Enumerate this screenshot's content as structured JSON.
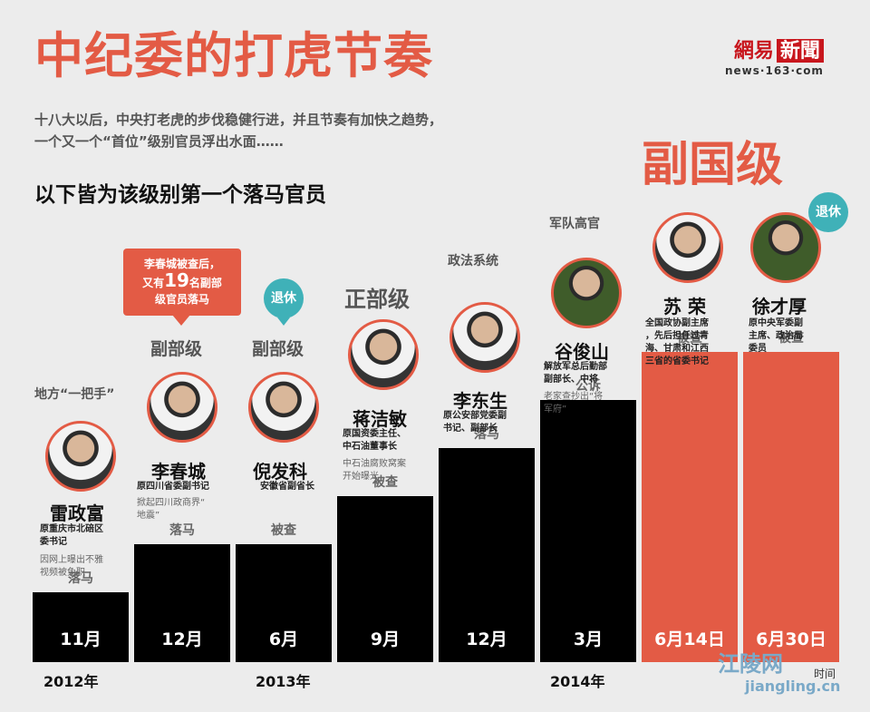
{
  "header": {
    "title": "中纪委的打虎节奏",
    "subtitle_lines": [
      "十八大以后，中央打老虎的步伐稳健行进，并且节奏有加快之趋势，",
      "一个又一个“首位”级别官员浮出水面……"
    ],
    "heading": "以下皆为该级别第一个落马官员",
    "top_rank": "副国级"
  },
  "logo": {
    "main": "網易",
    "box": "新聞",
    "sub": "news·163·com"
  },
  "callout": {
    "line1": "李春城被查后，",
    "line2_pre": "又有",
    "line2_num": "19",
    "line2_post": "名副部",
    "line3": "级官员落马"
  },
  "levels": {
    "lei": "地方“一把手”",
    "li": "副部级",
    "ni": "副部级",
    "jiang": "正部级",
    "lidong": "政法系统",
    "gu": "军队高官"
  },
  "badges": {
    "ni": "退休",
    "xu": "退休"
  },
  "people": [
    {
      "name": "雷政富",
      "desc": [
        "原重庆市北碚区",
        "委书记"
      ],
      "note": [
        "因网上曝出不雅",
        "视频被免职"
      ]
    },
    {
      "name": "李春城",
      "desc": [
        "原四川省委副书记"
      ],
      "note": [
        "掀起四川政商界“",
        "地震”"
      ]
    },
    {
      "name": "倪发科",
      "desc": [
        "安徽省副省长"
      ],
      "note": []
    },
    {
      "name": "蒋洁敏",
      "desc": [
        "原国资委主任、",
        "中石油董事长"
      ],
      "note": [
        "中石油腐败窝案",
        "开始曝光"
      ]
    },
    {
      "name": "李东生",
      "desc": [
        "原公安部党委副",
        "书记、副部长"
      ],
      "note": []
    },
    {
      "name": "谷俊山",
      "desc": [
        "解放军总后勤部",
        "副部长、中将"
      ],
      "note": [
        "老家查抄出“将",
        "军府”"
      ]
    },
    {
      "name": "苏 荣",
      "desc": [
        "全国政协副主席",
        "，先后担任过青",
        "海、甘肃和江西",
        "三省的省委书记"
      ],
      "note": []
    },
    {
      "name": "徐才厚",
      "desc": [
        "原中央军委副",
        "主席、政治局",
        "委员"
      ],
      "note": []
    }
  ],
  "years": [
    "2012年",
    "2013年",
    "2014年"
  ],
  "watermark": {
    "cn": "江陵网",
    "url": "jiangling.cn",
    "axis": "时间"
  },
  "colors": {
    "accent": "#e35b45",
    "bar": "#000000",
    "badge": "#3fb1b8"
  },
  "chart_data": {
    "type": "bar",
    "categories": [
      "11月",
      "12月",
      "6月",
      "9月",
      "12月",
      "3月",
      "6月14日",
      "6月30日"
    ],
    "statuses": [
      "落马",
      "落马",
      "被查",
      "被查",
      "落马",
      "公诉",
      "被查",
      "被查"
    ],
    "values": [
      1,
      2,
      2,
      3,
      4,
      5,
      6,
      6
    ],
    "highlight": [
      false,
      false,
      false,
      false,
      false,
      false,
      true,
      true
    ],
    "xlabel": "时间",
    "ylabel": ""
  }
}
